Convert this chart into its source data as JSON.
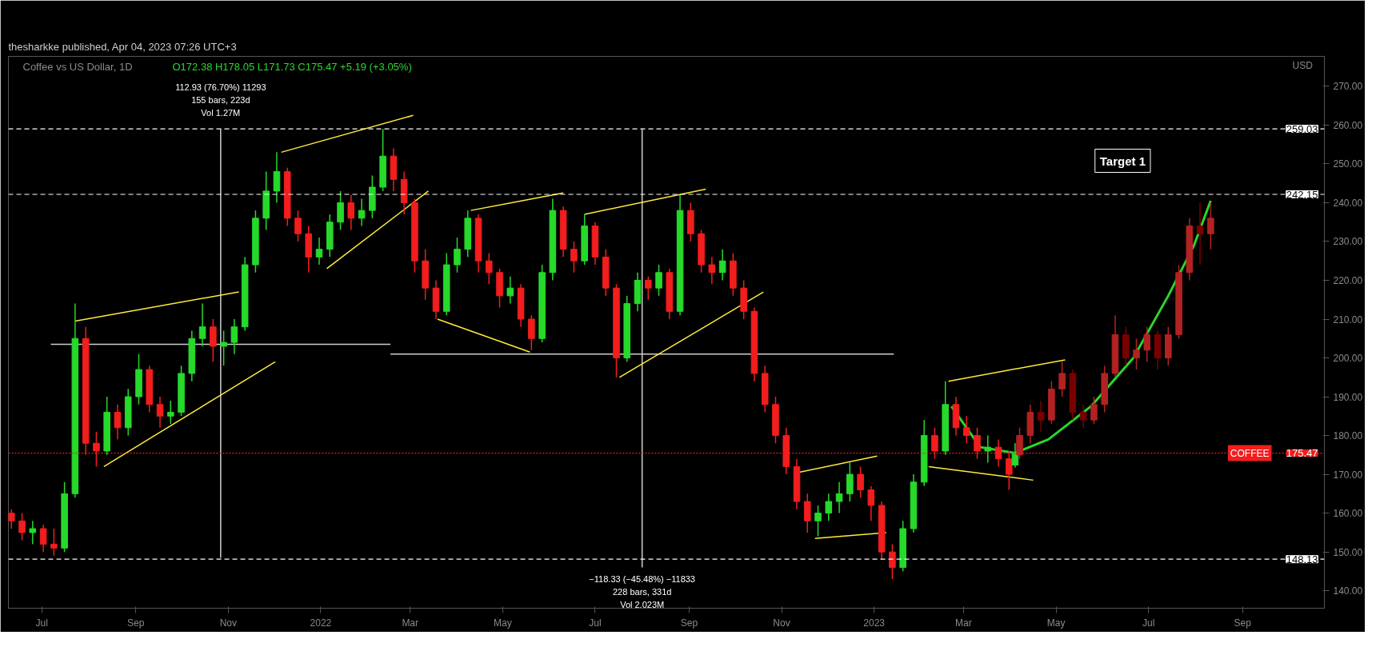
{
  "chart_data": {
    "type": "candlestick",
    "title": "Coffee vs US Dollar, 1D",
    "subtitle": "O172.38 H178.05 L171.73 C175.47 +5.19 (+3.05%)",
    "ylabel": "USD",
    "xlim": [
      "2021-06-09",
      "2023-10-25"
    ],
    "ylim": [
      135.5,
      277.7
    ],
    "yticks": [
      {
        "value": 140,
        "label": "140.00"
      },
      {
        "value": 150,
        "label": "150.00"
      },
      {
        "value": 160,
        "label": "160.00"
      },
      {
        "value": 170,
        "label": "170.00"
      },
      {
        "value": 180,
        "label": "180.00"
      },
      {
        "value": 190,
        "label": "190.00"
      },
      {
        "value": 200,
        "label": "200.00"
      },
      {
        "value": 210,
        "label": "210.00"
      },
      {
        "value": 220,
        "label": "220.00"
      },
      {
        "value": 230,
        "label": "230.00"
      },
      {
        "value": 240,
        "label": "240.00"
      },
      {
        "value": 250,
        "label": "250.00"
      },
      {
        "value": 260,
        "label": "260.00"
      },
      {
        "value": 270,
        "label": "270.00"
      }
    ],
    "xticks": [
      {
        "value": "2021-07-01",
        "label": "Jul"
      },
      {
        "value": "2021-09-01",
        "label": "Sep"
      },
      {
        "value": "2021-11-01",
        "label": "Nov"
      },
      {
        "value": "2022-01-01",
        "label": "2022"
      },
      {
        "value": "2022-03-01",
        "label": "Mar"
      },
      {
        "value": "2022-05-01",
        "label": "May"
      },
      {
        "value": "2022-07-01",
        "label": "Jul"
      },
      {
        "value": "2022-09-01",
        "label": "Sep"
      },
      {
        "value": "2022-11-01",
        "label": "Nov"
      },
      {
        "value": "2023-01-01",
        "label": "2023"
      },
      {
        "value": "2023-03-01",
        "label": "Mar"
      },
      {
        "value": "2023-05-01",
        "label": "May"
      },
      {
        "value": "2023-07-01",
        "label": "Jul"
      },
      {
        "value": "2023-09-01",
        "label": "Sep"
      }
    ],
    "series": [
      {
        "type": "line",
        "color": "#cfcfcf",
        "x": [
          "2021-10-27",
          "2021-10-27"
        ],
        "values": [
          148.5,
          259
        ]
      },
      {
        "type": "line",
        "color": "#cfcfcf",
        "x": [
          "2021-07-07",
          "2022-02-16"
        ],
        "values": [
          203.5,
          203.5
        ]
      },
      {
        "type": "line",
        "color": "#cfcfcf",
        "x": [
          "2022-08-01",
          "2022-08-01"
        ],
        "values": [
          259,
          146
        ]
      },
      {
        "type": "line",
        "color": "#cfcfcf",
        "x": [
          "2022-02-16",
          "2023-01-14"
        ],
        "values": [
          201,
          201
        ]
      },
      {
        "type": "line",
        "color": "#ffeb3b",
        "x": [
          "2021-07-23",
          "2021-11-08"
        ],
        "values": [
          209.5,
          217
        ]
      },
      {
        "type": "line",
        "color": "#ffeb3b",
        "x": [
          "2021-08-11",
          "2021-12-02"
        ],
        "values": [
          172,
          199
        ]
      },
      {
        "type": "line",
        "color": "#ffeb3b",
        "x": [
          "2021-12-06",
          "2022-03-03"
        ],
        "values": [
          253,
          262.5
        ]
      },
      {
        "type": "line",
        "color": "#ffeb3b",
        "x": [
          "2022-01-05",
          "2022-03-13"
        ],
        "values": [
          223,
          243
        ]
      },
      {
        "type": "line",
        "color": "#ffeb3b",
        "x": [
          "2022-04-10",
          "2022-06-10"
        ],
        "values": [
          238,
          242.5
        ]
      },
      {
        "type": "line",
        "color": "#ffeb3b",
        "x": [
          "2022-03-19",
          "2022-05-19"
        ],
        "values": [
          210,
          201.5
        ]
      },
      {
        "type": "line",
        "color": "#ffeb3b",
        "x": [
          "2022-06-24",
          "2022-09-12"
        ],
        "values": [
          237,
          243.5
        ]
      },
      {
        "type": "line",
        "color": "#ffeb3b",
        "x": [
          "2022-07-17",
          "2022-10-20"
        ],
        "values": [
          195,
          217
        ]
      },
      {
        "type": "line",
        "color": "#ffeb3b",
        "x": [
          "2022-11-12",
          "2023-01-03"
        ],
        "values": [
          170.5,
          174.7
        ]
      },
      {
        "type": "line",
        "color": "#ffeb3b",
        "x": [
          "2022-11-23",
          "2023-01-09"
        ],
        "values": [
          153.5,
          155
        ]
      },
      {
        "type": "line",
        "color": "#ffeb3b",
        "x": [
          "2023-02-19",
          "2023-05-07"
        ],
        "values": [
          194,
          199.5
        ]
      },
      {
        "type": "line",
        "color": "#ffeb3b",
        "x": [
          "2023-02-06",
          "2023-04-16"
        ],
        "values": [
          172,
          168.5
        ]
      },
      {
        "type": "line",
        "color": "#2bd62b",
        "x": [
          "2023-02-21",
          "2023-03-12",
          "2023-04-04",
          "2023-04-26",
          "2023-05-24",
          "2023-06-21",
          "2023-07-14",
          "2023-07-31",
          "2023-08-11"
        ],
        "values": [
          187.5,
          177,
          175.5,
          179,
          187.5,
          200,
          216,
          229,
          240.5
        ]
      },
      {
        "x": [
          "2021-06-11",
          "2021-06-18",
          "2021-06-25",
          "2021-07-02",
          "2021-07-09",
          "2021-07-16",
          "2021-07-23",
          "2021-07-30",
          "2021-08-06",
          "2021-08-13",
          "2021-08-20",
          "2021-08-27",
          "2021-09-03",
          "2021-09-10",
          "2021-09-17",
          "2021-09-24",
          "2021-10-01",
          "2021-10-08",
          "2021-10-15",
          "2021-10-22",
          "2021-10-29",
          "2021-11-05",
          "2021-11-12",
          "2021-11-19",
          "2021-11-26",
          "2021-12-03",
          "2021-12-10",
          "2021-12-17",
          "2021-12-24",
          "2021-12-31",
          "2022-01-07",
          "2022-01-14",
          "2022-01-21",
          "2022-01-28",
          "2022-02-04",
          "2022-02-11",
          "2022-02-18",
          "2022-02-25",
          "2022-03-04",
          "2022-03-11",
          "2022-03-18",
          "2022-03-25",
          "2022-04-01",
          "2022-04-08",
          "2022-04-15",
          "2022-04-22",
          "2022-04-29",
          "2022-05-06",
          "2022-05-13",
          "2022-05-20",
          "2022-05-27",
          "2022-06-03",
          "2022-06-10",
          "2022-06-17",
          "2022-06-24",
          "2022-07-01",
          "2022-07-08",
          "2022-07-15",
          "2022-07-22",
          "2022-07-29",
          "2022-08-05",
          "2022-08-12",
          "2022-08-19",
          "2022-08-26",
          "2022-09-02",
          "2022-09-09",
          "2022-09-16",
          "2022-09-23",
          "2022-09-30",
          "2022-10-07",
          "2022-10-14",
          "2022-10-21",
          "2022-10-28",
          "2022-11-04",
          "2022-11-11",
          "2022-11-18",
          "2022-11-25",
          "2022-12-02",
          "2022-12-09",
          "2022-12-16",
          "2022-12-23",
          "2022-12-30",
          "2023-01-06",
          "2023-01-13",
          "2023-01-20",
          "2023-01-27",
          "2023-02-03",
          "2023-02-10",
          "2023-02-17",
          "2023-02-24",
          "2023-03-03",
          "2023-03-10",
          "2023-03-17",
          "2023-03-24",
          "2023-03-31",
          "2023-04-04"
        ],
        "ohlc": [
          [
            160,
            161,
            156,
            158
          ],
          [
            158,
            160,
            153,
            155
          ],
          [
            155,
            158,
            152,
            156
          ],
          [
            156,
            157,
            150,
            152
          ],
          [
            152,
            156,
            149,
            151
          ],
          [
            151,
            168,
            150,
            165
          ],
          [
            165,
            214,
            164,
            205
          ],
          [
            205,
            208,
            175,
            178
          ],
          [
            178,
            181,
            172,
            176
          ],
          [
            176,
            190,
            175,
            186
          ],
          [
            186,
            188,
            179,
            182
          ],
          [
            182,
            192,
            180,
            190
          ],
          [
            190,
            201,
            188,
            197
          ],
          [
            197,
            198,
            186,
            188
          ],
          [
            188,
            190,
            182,
            185
          ],
          [
            185,
            189,
            183,
            186
          ],
          [
            186,
            198,
            185,
            196
          ],
          [
            196,
            207,
            194,
            205
          ],
          [
            205,
            214,
            203,
            208
          ],
          [
            208,
            210,
            199,
            203
          ],
          [
            203,
            207,
            198,
            204
          ],
          [
            204,
            210,
            201,
            208
          ],
          [
            208,
            226,
            207,
            224
          ],
          [
            224,
            238,
            222,
            236
          ],
          [
            236,
            248,
            233,
            243
          ],
          [
            243,
            253,
            240,
            248
          ],
          [
            248,
            249,
            234,
            236
          ],
          [
            236,
            238,
            230,
            232
          ],
          [
            232,
            234,
            222,
            226
          ],
          [
            226,
            231,
            224,
            228
          ],
          [
            228,
            237,
            226,
            235
          ],
          [
            235,
            243,
            233,
            240
          ],
          [
            240,
            242,
            233,
            236
          ],
          [
            236,
            241,
            234,
            238
          ],
          [
            238,
            247,
            236,
            244
          ],
          [
            244,
            259,
            243,
            252
          ],
          [
            252,
            254,
            243,
            246
          ],
          [
            246,
            248,
            237,
            240
          ],
          [
            240,
            241,
            222,
            225
          ],
          [
            225,
            228,
            215,
            218
          ],
          [
            218,
            220,
            210,
            212
          ],
          [
            212,
            227,
            211,
            224
          ],
          [
            224,
            231,
            222,
            228
          ],
          [
            228,
            238,
            226,
            236
          ],
          [
            236,
            237,
            222,
            225
          ],
          [
            225,
            227,
            219,
            222
          ],
          [
            222,
            223,
            213,
            216
          ],
          [
            216,
            221,
            214,
            218
          ],
          [
            218,
            219,
            208,
            210
          ],
          [
            210,
            211,
            202,
            205
          ],
          [
            205,
            224,
            204,
            222
          ],
          [
            222,
            241,
            220,
            238
          ],
          [
            238,
            239,
            226,
            228
          ],
          [
            228,
            230,
            222,
            225
          ],
          [
            225,
            237,
            224,
            234
          ],
          [
            234,
            235,
            224,
            226
          ],
          [
            226,
            228,
            216,
            218
          ],
          [
            218,
            219,
            195,
            200
          ],
          [
            200,
            216,
            199,
            214
          ],
          [
            214,
            222,
            212,
            220
          ],
          [
            220,
            221,
            215,
            218
          ],
          [
            218,
            224,
            216,
            222
          ],
          [
            222,
            223,
            210,
            212
          ],
          [
            212,
            242,
            211,
            238
          ],
          [
            238,
            240,
            230,
            232
          ],
          [
            232,
            233,
            222,
            224
          ],
          [
            224,
            226,
            219,
            222
          ],
          [
            222,
            228,
            220,
            225
          ],
          [
            225,
            227,
            216,
            218
          ],
          [
            218,
            220,
            210,
            212
          ],
          [
            212,
            213,
            194,
            196
          ],
          [
            196,
            198,
            186,
            188
          ],
          [
            188,
            190,
            178,
            180
          ],
          [
            180,
            182,
            170,
            172
          ],
          [
            172,
            174,
            161,
            163
          ],
          [
            163,
            165,
            155,
            158
          ],
          [
            158,
            162,
            154,
            160
          ],
          [
            160,
            165,
            158,
            163
          ],
          [
            163,
            168,
            160,
            165
          ],
          [
            165,
            173,
            163,
            170
          ],
          [
            170,
            172,
            164,
            166
          ],
          [
            166,
            167,
            158,
            162
          ],
          [
            162,
            163,
            148,
            150
          ],
          [
            150,
            152,
            143,
            146
          ],
          [
            146,
            158,
            145,
            156
          ],
          [
            156,
            170,
            155,
            168
          ],
          [
            168,
            184,
            167,
            180
          ],
          [
            180,
            182,
            174,
            176
          ],
          [
            176,
            194,
            175,
            188
          ],
          [
            188,
            190,
            180,
            182
          ],
          [
            182,
            185,
            178,
            180
          ],
          [
            180,
            182,
            174,
            176
          ],
          [
            176,
            180,
            173,
            177
          ],
          [
            177,
            179,
            172,
            174
          ],
          [
            174,
            176,
            166,
            170
          ],
          [
            172.38,
            178.05,
            171.73,
            175.47
          ]
        ],
        "colors": [
          "#f21d1d",
          "#f21d1d",
          "#26d92b",
          "#f21d1d",
          "#f21d1d",
          "#26d92b",
          "#26d92b",
          "#f21d1d",
          "#f21d1d",
          "#26d92b",
          "#f21d1d",
          "#26d92b",
          "#26d92b",
          "#f21d1d",
          "#f21d1d",
          "#26d92b",
          "#26d92b",
          "#26d92b",
          "#26d92b",
          "#f21d1d",
          "#26d92b",
          "#26d92b",
          "#26d92b",
          "#26d92b",
          "#26d92b",
          "#26d92b",
          "#f21d1d",
          "#f21d1d",
          "#f21d1d",
          "#26d92b",
          "#26d92b",
          "#26d92b",
          "#f21d1d",
          "#26d92b",
          "#26d92b",
          "#26d92b",
          "#f21d1d",
          "#f21d1d",
          "#f21d1d",
          "#f21d1d",
          "#f21d1d",
          "#26d92b",
          "#26d92b",
          "#26d92b",
          "#f21d1d",
          "#f21d1d",
          "#f21d1d",
          "#26d92b",
          "#f21d1d",
          "#f21d1d",
          "#26d92b",
          "#26d92b",
          "#f21d1d",
          "#f21d1d",
          "#26d92b",
          "#f21d1d",
          "#f21d1d",
          "#f21d1d",
          "#26d92b",
          "#26d92b",
          "#f21d1d",
          "#26d92b",
          "#f21d1d",
          "#26d92b",
          "#f21d1d",
          "#f21d1d",
          "#f21d1d",
          "#26d92b",
          "#f21d1d",
          "#f21d1d",
          "#f21d1d",
          "#f21d1d",
          "#f21d1d",
          "#f21d1d",
          "#f21d1d",
          "#f21d1d",
          "#26d92b",
          "#26d92b",
          "#26d92b",
          "#26d92b",
          "#f21d1d",
          "#f21d1d",
          "#f21d1d",
          "#f21d1d",
          "#26d92b",
          "#26d92b",
          "#26d92b",
          "#f21d1d",
          "#26d92b",
          "#f21d1d",
          "#f21d1d",
          "#f21d1d",
          "#26d92b",
          "#f21d1d",
          "#f21d1d",
          "#26d92b"
        ]
      },
      {
        "colors": [
          "#b22222",
          "#b22222",
          "#7a0000",
          "#b22222",
          "#b22222",
          "#7a0000",
          "#7a0000",
          "#b22222",
          "#b22222",
          "#b22222",
          "#7a0000",
          "#b22222",
          "#b22222",
          "#7a0000",
          "#b22222",
          "#b22222",
          "#b22222",
          "#7a0000",
          "#b22222"
        ],
        "x": [
          "2023-04-07",
          "2023-04-14",
          "2023-04-21",
          "2023-04-28",
          "2023-05-05",
          "2023-05-12",
          "2023-05-19",
          "2023-05-26",
          "2023-06-02",
          "2023-06-09",
          "2023-06-16",
          "2023-06-23",
          "2023-06-30",
          "2023-07-07",
          "2023-07-14",
          "2023-07-21",
          "2023-07-28",
          "2023-08-04",
          "2023-08-11"
        ],
        "ohlc": [
          [
            175,
            182,
            174,
            180
          ],
          [
            180,
            188,
            178,
            186
          ],
          [
            186,
            189,
            181,
            184
          ],
          [
            184,
            194,
            183,
            192
          ],
          [
            192,
            199,
            190,
            196
          ],
          [
            196,
            197,
            184,
            186
          ],
          [
            186,
            188,
            182,
            184
          ],
          [
            184,
            190,
            183,
            188
          ],
          [
            188,
            198,
            186,
            196
          ],
          [
            196,
            211,
            195,
            206
          ],
          [
            206,
            208,
            198,
            200
          ],
          [
            200,
            205,
            197,
            202
          ],
          [
            202,
            208,
            199,
            206
          ],
          [
            206,
            207,
            197,
            200
          ],
          [
            200,
            208,
            198,
            206
          ],
          [
            206,
            224,
            205,
            222
          ],
          [
            222,
            236,
            220,
            234
          ],
          [
            234,
            240,
            224,
            232
          ],
          [
            232,
            240,
            228,
            236
          ]
        ]
      }
    ],
    "ref_lines": [
      {
        "axis": "y",
        "value": 259.03,
        "label": "259.03",
        "color": "#ffffff",
        "line_style": "dashed"
      },
      {
        "axis": "y",
        "value": 242.15,
        "label": "242.15",
        "color": "#ffffff",
        "line_style": "dashed"
      },
      {
        "axis": "y",
        "value": 148.13,
        "label": "148.13",
        "color": "#ffffff",
        "line_style": "dashed"
      },
      {
        "axis": "y",
        "value": 175.47,
        "label": "175.47",
        "color": "#f21d1d",
        "line_style": "dotted"
      }
    ],
    "annotations": [
      "thesharkke published, Apr 04, 2023 07:26 UTC+3",
      "112.93 (76.70%) 11293",
      "155 bars, 223d",
      "Vol 1.27M",
      "−118.33 (−45.48%) −11833",
      "228 bars, 331d",
      "Vol 2.023M",
      "Target 1",
      {
        "text": "COFFEE",
        "y": 175.47
      }
    ]
  }
}
